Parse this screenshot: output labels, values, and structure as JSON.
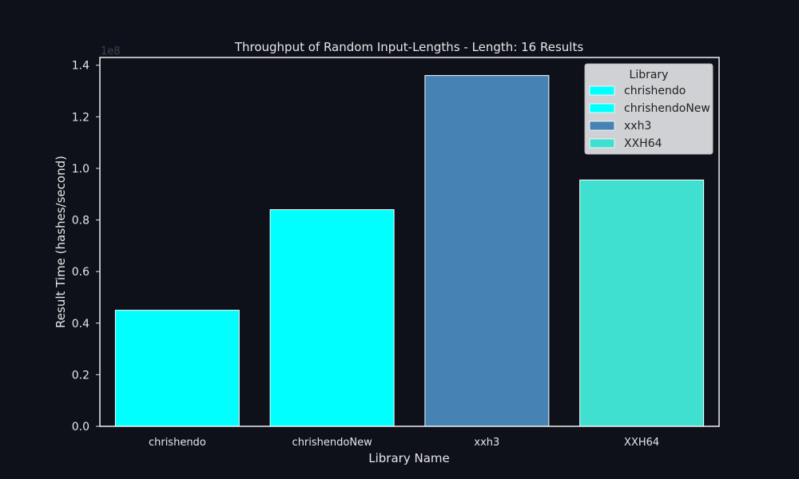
{
  "chart_data": {
    "type": "bar",
    "title": "Throughput of Random Input-Lengths - Length: 16 Results",
    "xlabel": "Library Name",
    "ylabel": "Result Time (hashes/second)",
    "offset_label": "1e8",
    "categories": [
      "chrishendo",
      "chrishendoNew",
      "xxh3",
      "XXH64"
    ],
    "values": [
      45000000,
      84000000,
      136000000,
      95500000
    ],
    "colors": [
      "#00ffff",
      "#00ffff",
      "#4682b4",
      "#40e0d0"
    ],
    "ylim": [
      0,
      143000000
    ],
    "yticks": [
      0,
      20000000,
      40000000,
      60000000,
      80000000,
      100000000,
      120000000,
      140000000
    ],
    "ytick_labels": [
      "0.0",
      "0.2",
      "0.4",
      "0.6",
      "0.8",
      "1.0",
      "1.2",
      "1.4"
    ],
    "grid": false,
    "legend": {
      "title": "Library",
      "placement": "top-right",
      "entries": [
        {
          "label": "chrishendo",
          "color": "#00ffff"
        },
        {
          "label": "chrishendoNew",
          "color": "#00ffff"
        },
        {
          "label": "xxh3",
          "color": "#4682b4"
        },
        {
          "label": "XXH64",
          "color": "#40e0d0"
        }
      ]
    }
  }
}
